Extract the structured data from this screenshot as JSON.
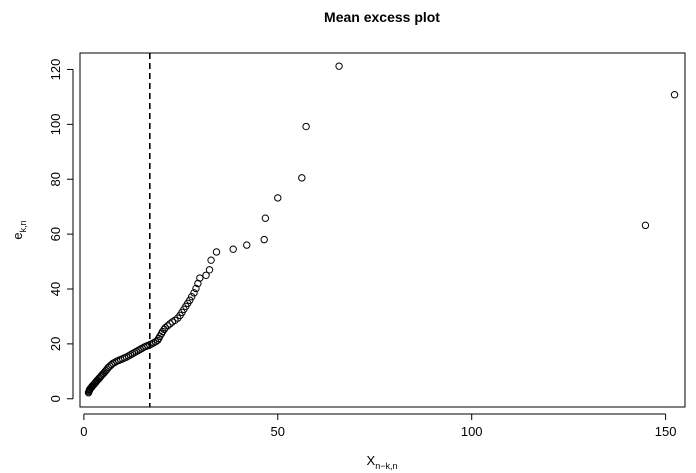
{
  "chart_data": {
    "type": "scatter",
    "title": "Mean excess plot",
    "xlabel": "X",
    "xlabel_subscript": "n−k,n",
    "ylabel": "e",
    "ylabel_subscript": "k,n",
    "xlim": [
      -1,
      155
    ],
    "ylim": [
      -3,
      126
    ],
    "x_ticks": [
      0,
      50,
      100,
      150
    ],
    "x_tick_labels": [
      "0",
      "50",
      "100",
      "150"
    ],
    "y_ticks": [
      0,
      20,
      40,
      60,
      80,
      100,
      120
    ],
    "y_tick_labels": [
      "0",
      "20",
      "40",
      "60",
      "80",
      "100",
      "120"
    ],
    "marker": "open-circle",
    "threshold_line": {
      "x": 17,
      "style": "dashed"
    },
    "grid": false,
    "points": [
      [
        1.2,
        2.2
      ],
      [
        1.3,
        2.6
      ],
      [
        1.4,
        3.0
      ],
      [
        1.5,
        3.3
      ],
      [
        1.6,
        3.6
      ],
      [
        1.8,
        3.9
      ],
      [
        2.0,
        4.2
      ],
      [
        2.1,
        4.5
      ],
      [
        2.3,
        4.8
      ],
      [
        2.5,
        5.1
      ],
      [
        2.7,
        5.4
      ],
      [
        2.9,
        5.8
      ],
      [
        3.1,
        6.1
      ],
      [
        3.3,
        6.5
      ],
      [
        3.5,
        6.8
      ],
      [
        3.8,
        7.2
      ],
      [
        4.0,
        7.6
      ],
      [
        4.3,
        8.0
      ],
      [
        4.5,
        8.4
      ],
      [
        4.8,
        8.9
      ],
      [
        5.1,
        9.3
      ],
      [
        5.4,
        9.8
      ],
      [
        5.7,
        10.3
      ],
      [
        6.0,
        10.8
      ],
      [
        6.3,
        11.4
      ],
      [
        6.7,
        11.9
      ],
      [
        7.1,
        12.4
      ],
      [
        7.5,
        12.9
      ],
      [
        8.0,
        13.3
      ],
      [
        8.5,
        13.7
      ],
      [
        9.0,
        14.0
      ],
      [
        9.5,
        14.3
      ],
      [
        10.0,
        14.6
      ],
      [
        10.5,
        14.9
      ],
      [
        11.0,
        15.2
      ],
      [
        11.5,
        15.6
      ],
      [
        12.0,
        16.0
      ],
      [
        12.5,
        16.4
      ],
      [
        13.0,
        16.8
      ],
      [
        13.5,
        17.2
      ],
      [
        14.0,
        17.6
      ],
      [
        14.5,
        18.0
      ],
      [
        15.0,
        18.4
      ],
      [
        15.5,
        18.8
      ],
      [
        16.0,
        19.1
      ],
      [
        16.5,
        19.4
      ],
      [
        17.0,
        19.7
      ],
      [
        17.5,
        20.0
      ],
      [
        18.0,
        20.4
      ],
      [
        18.5,
        20.8
      ],
      [
        19.0,
        21.3
      ],
      [
        19.3,
        22.0
      ],
      [
        19.6,
        22.8
      ],
      [
        20.0,
        23.7
      ],
      [
        20.3,
        24.5
      ],
      [
        20.7,
        25.3
      ],
      [
        21.0,
        25.9
      ],
      [
        21.6,
        26.6
      ],
      [
        22.2,
        27.3
      ],
      [
        22.8,
        28.0
      ],
      [
        23.5,
        28.6
      ],
      [
        24.2,
        29.4
      ],
      [
        24.8,
        30.4
      ],
      [
        25.3,
        31.5
      ],
      [
        25.8,
        32.6
      ],
      [
        26.3,
        33.7
      ],
      [
        26.8,
        34.8
      ],
      [
        27.3,
        35.9
      ],
      [
        27.8,
        37.2
      ],
      [
        28.4,
        38.6
      ],
      [
        28.9,
        40.2
      ],
      [
        29.4,
        42.0
      ],
      [
        29.9,
        44.0
      ],
      [
        31.5,
        45.0
      ],
      [
        32.4,
        47.0
      ],
      [
        32.8,
        50.5
      ],
      [
        34.2,
        53.5
      ],
      [
        38.5,
        54.5
      ],
      [
        42.0,
        56.0
      ],
      [
        46.5,
        58.0
      ],
      [
        46.8,
        65.8
      ],
      [
        50.0,
        73.2
      ],
      [
        56.2,
        80.5
      ],
      [
        57.3,
        99.2
      ],
      [
        65.8,
        121.2
      ],
      [
        144.8,
        63.2
      ],
      [
        152.3,
        110.8
      ]
    ]
  }
}
